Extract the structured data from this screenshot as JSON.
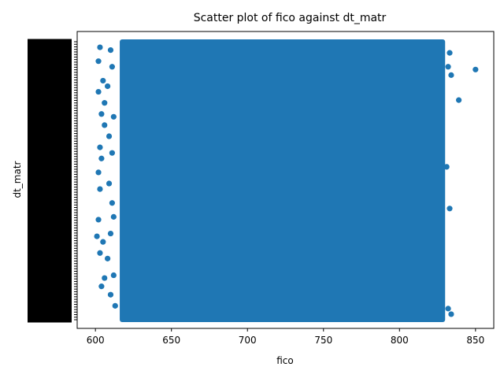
{
  "chart_data": {
    "type": "scatter",
    "title": "Scatter plot of fico against dt_matr",
    "xlabel": "fico",
    "ylabel": "dt_matr",
    "xlim": [
      588,
      862
    ],
    "x_ticks": [
      600,
      650,
      700,
      750,
      800,
      850
    ],
    "y_tick_labels": "dense, overlapping (unreadable)",
    "color": "#1f77b4",
    "grid": false,
    "legend": "none",
    "series": [
      {
        "dense_region": {
          "x": [
            616,
            830
          ],
          "y_fraction": [
            0.0,
            1.0
          ]
        },
        "points": [
          {
            "x": 850,
            "y": 0.9
          },
          {
            "x": 839,
            "y": 0.79
          },
          {
            "x": 603,
            "y": 0.98
          },
          {
            "x": 602,
            "y": 0.93
          },
          {
            "x": 605,
            "y": 0.86
          },
          {
            "x": 602,
            "y": 0.82
          },
          {
            "x": 606,
            "y": 0.78
          },
          {
            "x": 604,
            "y": 0.74
          },
          {
            "x": 606,
            "y": 0.7
          },
          {
            "x": 603,
            "y": 0.62
          },
          {
            "x": 604,
            "y": 0.58
          },
          {
            "x": 602,
            "y": 0.53
          },
          {
            "x": 603,
            "y": 0.47
          },
          {
            "x": 602,
            "y": 0.36
          },
          {
            "x": 601,
            "y": 0.3
          },
          {
            "x": 605,
            "y": 0.28
          },
          {
            "x": 603,
            "y": 0.24
          },
          {
            "x": 606,
            "y": 0.15
          },
          {
            "x": 604,
            "y": 0.12
          },
          {
            "x": 610,
            "y": 0.97
          },
          {
            "x": 611,
            "y": 0.91
          },
          {
            "x": 608,
            "y": 0.84
          },
          {
            "x": 612,
            "y": 0.73
          },
          {
            "x": 609,
            "y": 0.66
          },
          {
            "x": 611,
            "y": 0.6
          },
          {
            "x": 609,
            "y": 0.49
          },
          {
            "x": 611,
            "y": 0.42
          },
          {
            "x": 612,
            "y": 0.37
          },
          {
            "x": 610,
            "y": 0.31
          },
          {
            "x": 608,
            "y": 0.22
          },
          {
            "x": 612,
            "y": 0.16
          },
          {
            "x": 610,
            "y": 0.09
          },
          {
            "x": 613,
            "y": 0.05
          },
          {
            "x": 833,
            "y": 0.96
          },
          {
            "x": 832,
            "y": 0.91
          },
          {
            "x": 834,
            "y": 0.88
          },
          {
            "x": 831,
            "y": 0.55
          },
          {
            "x": 833,
            "y": 0.4
          },
          {
            "x": 832,
            "y": 0.04
          },
          {
            "x": 834,
            "y": 0.02
          }
        ]
      }
    ]
  }
}
